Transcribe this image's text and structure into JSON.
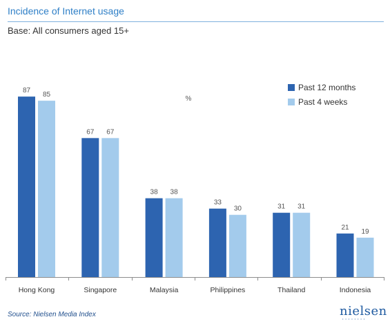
{
  "header": {
    "title": "Incidence of Internet usage",
    "subtitle": "Base: All consumers aged 15+"
  },
  "chart_data": {
    "type": "bar",
    "unit_label": "%",
    "categories": [
      "Hong Kong",
      "Singapore",
      "Malaysia",
      "Philippines",
      "Thailand",
      "Indonesia"
    ],
    "series": [
      {
        "name": "Past 12 months",
        "color": "#2d64b0",
        "values": [
          87,
          67,
          38,
          33,
          31,
          21
        ]
      },
      {
        "name": "Past 4 weeks",
        "color": "#a3cbec",
        "values": [
          85,
          67,
          38,
          30,
          31,
          19
        ]
      }
    ],
    "ylim": [
      0,
      100
    ],
    "grid": false,
    "legend_position": "top-right"
  },
  "footer": {
    "source": "Source: Nielsen Media Index",
    "logo_text": "nielsen"
  }
}
